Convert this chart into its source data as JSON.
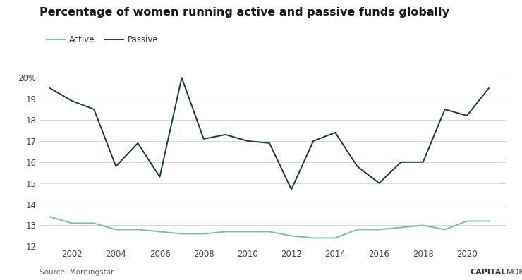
{
  "title": "Percentage of women running active and passive funds globally",
  "source": "Source: Morningstar",
  "active_color": "#7bbf9e",
  "passive_color": "#1a3c34",
  "years": [
    2001,
    2002,
    2003,
    2004,
    2005,
    2006,
    2007,
    2008,
    2009,
    2010,
    2011,
    2012,
    2013,
    2014,
    2015,
    2016,
    2017,
    2018,
    2019,
    2020,
    2021
  ],
  "active": [
    13.4,
    13.1,
    13.1,
    12.8,
    12.8,
    12.7,
    12.6,
    12.6,
    12.7,
    12.7,
    12.7,
    12.5,
    12.4,
    12.4,
    12.8,
    12.8,
    12.9,
    13.0,
    12.8,
    13.2,
    13.2
  ],
  "passive": [
    19.5,
    18.9,
    18.5,
    15.8,
    16.9,
    15.3,
    20.0,
    17.1,
    17.3,
    17.0,
    16.9,
    14.7,
    17.0,
    17.4,
    15.8,
    15.0,
    16.0,
    16.0,
    18.5,
    18.2,
    19.5
  ],
  "ylim": [
    12,
    20.5
  ],
  "ytick_vals": [
    12,
    13,
    14,
    15,
    16,
    17,
    18,
    19,
    20
  ],
  "ytick_labels": [
    "12",
    "13",
    "14",
    "15",
    "16",
    "17",
    "18",
    "19",
    "20%"
  ],
  "xticks": [
    2002,
    2004,
    2006,
    2008,
    2010,
    2012,
    2014,
    2016,
    2018,
    2020
  ],
  "xlim": [
    2000.5,
    2021.8
  ],
  "background_color": "#ffffff",
  "grid_color": "#d0d0d0",
  "line_width": 1.4,
  "title_fontsize": 11.5,
  "legend_fontsize": 8.5,
  "tick_fontsize": 8.5,
  "source_fontsize": 7.5,
  "watermark_capital_fontsize": 8.0,
  "watermark_monitor_fontsize": 8.0
}
